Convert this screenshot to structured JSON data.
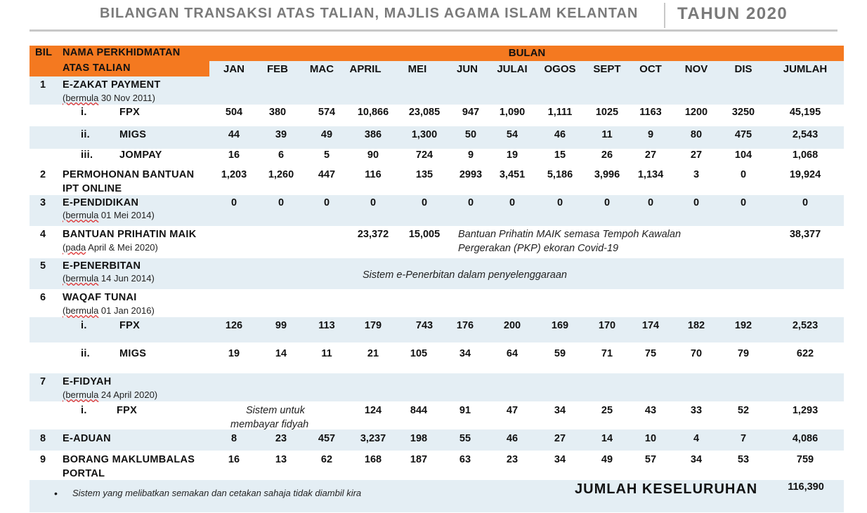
{
  "title": "BILANGAN TRANSAKSI ATAS TALIAN, MAJLIS AGAMA ISLAM KELANTAN",
  "year": "TAHUN 2020",
  "header": {
    "bil": "BIL",
    "nama_line1": "NAMA PERKHIDMATAN",
    "nama_line2": "ATAS TALIAN",
    "bulan": "BULAN",
    "months": [
      "JAN",
      "FEB",
      "MAC",
      "APRIL",
      "MEI",
      "JUN",
      "JULAI",
      "OGOS",
      "SEPT",
      "OCT",
      "NOV",
      "DIS",
      "JUMLAH"
    ]
  },
  "sections": {
    "s1": {
      "no": "1",
      "name": "E-ZAKAT PAYMENT",
      "sub_word": "(bermula",
      "sub_rest": " 30 Nov 2011)"
    },
    "s1_fpx": {
      "idx": "i.",
      "name": "FPX",
      "values": [
        "504",
        "380",
        "574",
        "10,866",
        "23,085",
        "947",
        "1,090",
        "1,111",
        "1025",
        "1163",
        "1200",
        "3250",
        "45,195"
      ]
    },
    "s1_migs": {
      "idx": "ii.",
      "name": "MIGS",
      "values": [
        "44",
        "39",
        "49",
        "386",
        "1,300",
        "50",
        "54",
        "46",
        "11",
        "9",
        "80",
        "475",
        "2,543"
      ]
    },
    "s1_jompay": {
      "idx": "iii.",
      "name": "JOMPAY",
      "values": [
        "16",
        "6",
        "5",
        "90",
        "724",
        "9",
        "19",
        "15",
        "26",
        "27",
        "27",
        "104",
        "1,068"
      ]
    },
    "s2": {
      "no": "2",
      "name_line1": "PERMOHONAN BANTUAN",
      "name_line2": "IPT ONLINE",
      "values": [
        "1,203",
        "1,260",
        "447",
        "116",
        "135",
        "2993",
        "3,451",
        "5,186",
        "3,996",
        "1,134",
        "3",
        "0",
        "19,924"
      ]
    },
    "s3": {
      "no": "3",
      "name": "E-PENDIDIKAN",
      "sub_word": "(bermula",
      "sub_rest": " 01 Mei 2014)",
      "values": [
        "0",
        "0",
        "0",
        "0",
        "0",
        "0",
        "0",
        "0",
        "0",
        "0",
        "0",
        "0",
        "0"
      ]
    },
    "s4": {
      "no": "4",
      "name": "BANTUAN PRIHATIN MAIK",
      "sub_word": "(pada",
      "sub_rest": " April & Mei 2020)",
      "april": "23,372",
      "mei": "15,005",
      "note_line1": "Bantuan Prihatin MAIK semasa Tempoh Kawalan",
      "note_line2": "Pergerakan (PKP) ekoran Covid-19",
      "total": "38,377"
    },
    "s5": {
      "no": "5",
      "name": "E-PENERBITAN",
      "sub_word": "(bermula",
      "sub_rest": " 14 Jun 2014)",
      "note": "Sistem e-Penerbitan dalam penyelenggaraan"
    },
    "s6": {
      "no": "6",
      "name": "WAQAF TUNAI",
      "sub_word": "(bermula",
      "sub_rest": " 01 Jan 2016)"
    },
    "s6_fpx": {
      "idx": "i.",
      "name": "FPX",
      "values": [
        "126",
        "99",
        "113",
        "179",
        "743",
        "176",
        "200",
        "169",
        "170",
        "174",
        "182",
        "192",
        "2,523"
      ]
    },
    "s6_migs": {
      "idx": "ii.",
      "name": "MIGS",
      "values": [
        "19",
        "14",
        "11",
        "21",
        "105",
        "34",
        "64",
        "59",
        "71",
        "75",
        "70",
        "79",
        "622"
      ]
    },
    "s7": {
      "no": "7",
      "name": "E-FIDYAH",
      "sub_word": "(bermula",
      "sub_rest": "  24 April 2020)"
    },
    "s7_fpx": {
      "idx": "i.",
      "name": "FPX",
      "note_line1": "Sistem untuk",
      "note_line2": "membayar fidyah",
      "values_from_april": [
        "124",
        "844",
        "91",
        "47",
        "34",
        "25",
        "43",
        "33",
        "52",
        "1,293"
      ]
    },
    "s8": {
      "no": "8",
      "name": "E-ADUAN",
      "values": [
        "8",
        "23",
        "457",
        "3,237",
        "198",
        "55",
        "46",
        "27",
        "14",
        "10",
        "4",
        "7",
        "4,086"
      ]
    },
    "s9": {
      "no": "9",
      "name_line1": "BORANG MAKLUMBALAS",
      "name_line2": "PORTAL",
      "values": [
        "16",
        "13",
        "62",
        "168",
        "187",
        "63",
        "23",
        "34",
        "49",
        "57",
        "34",
        "53",
        "759"
      ]
    }
  },
  "footer": {
    "bullet": "•",
    "note": "Sistem yang melibatkan semakan dan cetakan sahaja tidak diambil kira",
    "grand_label": "JUMLAH KESELURUHAN",
    "grand_value": "116,390"
  },
  "colors": {
    "header_orange": "#f47920",
    "band_blue": "#e4eef4",
    "title_grey": "#7a7a7a"
  }
}
